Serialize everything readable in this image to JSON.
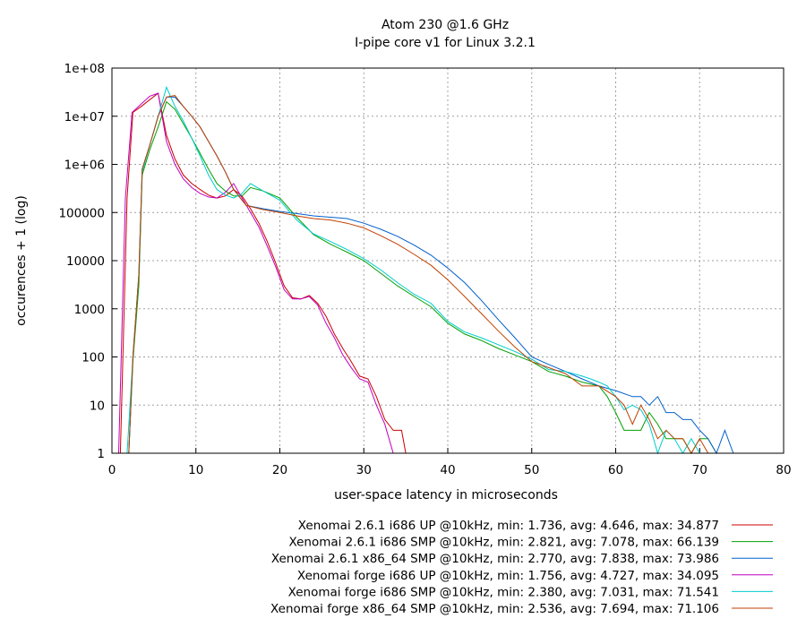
{
  "chart_data": {
    "type": "line",
    "title": "Atom 230 @1.6 GHz",
    "subtitle": "I-pipe core v1 for Linux 3.2.1",
    "xlabel": "user-space latency in microseconds",
    "ylabel": "occurences + 1 (log)",
    "xlim": [
      0,
      80
    ],
    "ylim": [
      1,
      100000000
    ],
    "yscale": "log",
    "grid": true,
    "legend_position": "bottom-right",
    "x_ticks": [
      "0",
      "10",
      "20",
      "30",
      "40",
      "50",
      "60",
      "70",
      "80"
    ],
    "y_ticks": [
      "1",
      "10",
      "100",
      "1000",
      "10000",
      "100000",
      "1e+06",
      "1e+07",
      "1e+08"
    ],
    "series": [
      {
        "name": "Xenomai 2.6.1 i686 UP @10kHz, min: 1.736, avg: 4.646, max: 34.877",
        "color": "#cc0000",
        "points": [
          [
            1.0,
            1
          ],
          [
            1.8,
            200000
          ],
          [
            2.5,
            12000000
          ],
          [
            3.5,
            16000000
          ],
          [
            4.5,
            22000000
          ],
          [
            5.5,
            30000000
          ],
          [
            6.5,
            4000000
          ],
          [
            7.5,
            1300000
          ],
          [
            8.5,
            600000
          ],
          [
            9.5,
            400000
          ],
          [
            10.5,
            300000
          ],
          [
            11.5,
            230000
          ],
          [
            12.5,
            200000
          ],
          [
            13.5,
            220000
          ],
          [
            14.5,
            300000
          ],
          [
            15.5,
            220000
          ],
          [
            16.5,
            120000
          ],
          [
            17.5,
            60000
          ],
          [
            18.5,
            25000
          ],
          [
            19.5,
            9000
          ],
          [
            20.5,
            3000
          ],
          [
            21.5,
            1700
          ],
          [
            22.5,
            1600
          ],
          [
            23.5,
            1900
          ],
          [
            24.5,
            1300
          ],
          [
            25.5,
            700
          ],
          [
            26.5,
            300
          ],
          [
            27.5,
            150
          ],
          [
            28.5,
            80
          ],
          [
            29.5,
            40
          ],
          [
            30.5,
            35
          ],
          [
            31.5,
            15
          ],
          [
            32.5,
            5
          ],
          [
            33.5,
            3
          ],
          [
            34.5,
            3
          ],
          [
            35.0,
            1
          ]
        ]
      },
      {
        "name": "Xenomai 2.6.1 i686 SMP @10kHz, min: 2.821, avg: 7.078, max: 66.139",
        "color": "#00a000",
        "points": [
          [
            2.0,
            1
          ],
          [
            2.5,
            80
          ],
          [
            3.2,
            3000
          ],
          [
            3.6,
            600000
          ],
          [
            4.5,
            2000000
          ],
          [
            5.5,
            6000000
          ],
          [
            6.5,
            20000000
          ],
          [
            7.5,
            14000000
          ],
          [
            8.5,
            7000000
          ],
          [
            9.5,
            3500000
          ],
          [
            10.5,
            1700000
          ],
          [
            11.5,
            800000
          ],
          [
            12.5,
            400000
          ],
          [
            13.5,
            280000
          ],
          [
            14.5,
            220000
          ],
          [
            15.5,
            220000
          ],
          [
            16.5,
            330000
          ],
          [
            18,
            280000
          ],
          [
            20,
            200000
          ],
          [
            22,
            80000
          ],
          [
            24,
            35000
          ],
          [
            26,
            22000
          ],
          [
            28,
            15000
          ],
          [
            30,
            10000
          ],
          [
            32,
            5500
          ],
          [
            34,
            3000
          ],
          [
            36,
            1800
          ],
          [
            38,
            1100
          ],
          [
            40,
            500
          ],
          [
            42,
            300
          ],
          [
            44,
            220
          ],
          [
            46,
            150
          ],
          [
            48,
            110
          ],
          [
            50,
            80
          ],
          [
            52,
            50
          ],
          [
            54,
            40
          ],
          [
            56,
            30
          ],
          [
            58,
            25
          ],
          [
            59,
            15
          ],
          [
            60,
            7
          ],
          [
            61,
            3
          ],
          [
            62,
            3
          ],
          [
            63,
            3
          ],
          [
            64,
            7
          ],
          [
            65,
            4
          ],
          [
            66,
            2
          ],
          [
            67,
            2
          ],
          [
            68,
            2
          ],
          [
            69,
            1
          ],
          [
            70,
            2
          ],
          [
            71,
            2
          ],
          [
            72,
            1
          ]
        ]
      },
      {
        "name": "Xenomai 2.6.1 x86_64 SMP @10kHz, min: 2.770, avg: 7.838, max: 73.986",
        "color": "#0060cc",
        "points": [
          [
            2.0,
            1
          ],
          [
            2.5,
            100
          ],
          [
            3.2,
            5000
          ],
          [
            3.6,
            800000
          ],
          [
            4.5,
            2500000
          ],
          [
            5.5,
            10000000
          ],
          [
            6.5,
            25000000
          ],
          [
            7.5,
            25000000
          ],
          [
            8.5,
            16000000
          ],
          [
            9.5,
            10000000
          ],
          [
            10.5,
            6000000
          ],
          [
            11.5,
            3000000
          ],
          [
            12.5,
            1500000
          ],
          [
            13.5,
            700000
          ],
          [
            14.5,
            300000
          ],
          [
            16,
            140000
          ],
          [
            18,
            120000
          ],
          [
            20,
            105000
          ],
          [
            22,
            95000
          ],
          [
            24,
            85000
          ],
          [
            26,
            80000
          ],
          [
            28,
            75000
          ],
          [
            30,
            60000
          ],
          [
            32,
            45000
          ],
          [
            34,
            32000
          ],
          [
            36,
            21000
          ],
          [
            38,
            13000
          ],
          [
            40,
            7000
          ],
          [
            42,
            3500
          ],
          [
            44,
            1500
          ],
          [
            46,
            600
          ],
          [
            48,
            250
          ],
          [
            50,
            100
          ],
          [
            52,
            70
          ],
          [
            54,
            50
          ],
          [
            56,
            35
          ],
          [
            58,
            25
          ],
          [
            60,
            20
          ],
          [
            62,
            15
          ],
          [
            63,
            15
          ],
          [
            64,
            10
          ],
          [
            65,
            15
          ],
          [
            66,
            7
          ],
          [
            67,
            7
          ],
          [
            68,
            5
          ],
          [
            69,
            5
          ],
          [
            70,
            3
          ],
          [
            71,
            2
          ],
          [
            72,
            1
          ],
          [
            73,
            3
          ],
          [
            74,
            1
          ]
        ]
      },
      {
        "name": "Xenomai forge i686 UP @10kHz, min: 1.756, avg: 4.727, max: 34.095",
        "color": "#c000c0",
        "points": [
          [
            0.8,
            1
          ],
          [
            1.6,
            200000
          ],
          [
            2.4,
            12000000
          ],
          [
            3.5,
            18000000
          ],
          [
            4.5,
            26000000
          ],
          [
            5.5,
            30000000
          ],
          [
            6.5,
            3000000
          ],
          [
            7.5,
            1000000
          ],
          [
            8.5,
            500000
          ],
          [
            9.5,
            330000
          ],
          [
            10.5,
            250000
          ],
          [
            11.5,
            210000
          ],
          [
            12.5,
            200000
          ],
          [
            13.5,
            260000
          ],
          [
            14.5,
            400000
          ],
          [
            15.5,
            200000
          ],
          [
            16.5,
            100000
          ],
          [
            17.5,
            50000
          ],
          [
            18.5,
            20000
          ],
          [
            19.5,
            7500
          ],
          [
            20.5,
            2500
          ],
          [
            21.5,
            1600
          ],
          [
            22.5,
            1600
          ],
          [
            23.5,
            1800
          ],
          [
            24.5,
            1200
          ],
          [
            25.5,
            500
          ],
          [
            26.5,
            250
          ],
          [
            27.5,
            110
          ],
          [
            28.5,
            60
          ],
          [
            29.5,
            35
          ],
          [
            30.5,
            30
          ],
          [
            31.5,
            10
          ],
          [
            32.5,
            4
          ],
          [
            33.0,
            2
          ],
          [
            33.5,
            1
          ]
        ]
      },
      {
        "name": "Xenomai forge i686 SMP @10kHz, min: 2.380, avg: 7.031, max: 71.541",
        "color": "#00cccc",
        "points": [
          [
            1.8,
            1
          ],
          [
            2.5,
            100
          ],
          [
            3.2,
            5000
          ],
          [
            3.6,
            700000
          ],
          [
            4.5,
            2500000
          ],
          [
            5.5,
            10000000
          ],
          [
            6.5,
            40000000
          ],
          [
            7.5,
            16000000
          ],
          [
            8.5,
            8000000
          ],
          [
            9.5,
            3500000
          ],
          [
            10.5,
            1500000
          ],
          [
            11.5,
            600000
          ],
          [
            12.5,
            300000
          ],
          [
            13.5,
            230000
          ],
          [
            14.5,
            200000
          ],
          [
            15.5,
            250000
          ],
          [
            16.5,
            400000
          ],
          [
            18,
            280000
          ],
          [
            20,
            180000
          ],
          [
            22,
            70000
          ],
          [
            24,
            36000
          ],
          [
            26,
            25000
          ],
          [
            28,
            17000
          ],
          [
            30,
            11000
          ],
          [
            32,
            6500
          ],
          [
            34,
            3500
          ],
          [
            36,
            2000
          ],
          [
            38,
            1300
          ],
          [
            40,
            550
          ],
          [
            42,
            330
          ],
          [
            44,
            250
          ],
          [
            46,
            180
          ],
          [
            48,
            130
          ],
          [
            50,
            90
          ],
          [
            52,
            55
          ],
          [
            54,
            50
          ],
          [
            56,
            40
          ],
          [
            57,
            35
          ],
          [
            58,
            30
          ],
          [
            59,
            25
          ],
          [
            60,
            15
          ],
          [
            61,
            8
          ],
          [
            62,
            10
          ],
          [
            63,
            8
          ],
          [
            64,
            4
          ],
          [
            65,
            1
          ],
          [
            66,
            3
          ],
          [
            67,
            2
          ],
          [
            68,
            1
          ],
          [
            69,
            2
          ],
          [
            70,
            1
          ],
          [
            71,
            1
          ]
        ]
      },
      {
        "name": "Xenomai forge x86_64 SMP @10kHz, min: 2.536, avg: 7.694, max: 71.106",
        "color": "#c04000",
        "points": [
          [
            2.0,
            1
          ],
          [
            2.5,
            100
          ],
          [
            3.2,
            5000
          ],
          [
            3.6,
            800000
          ],
          [
            4.5,
            2500000
          ],
          [
            5.5,
            10000000
          ],
          [
            6.5,
            25000000
          ],
          [
            7.5,
            27000000
          ],
          [
            8.5,
            16000000
          ],
          [
            9.5,
            10000000
          ],
          [
            10.5,
            6000000
          ],
          [
            11.5,
            3000000
          ],
          [
            12.5,
            1500000
          ],
          [
            13.5,
            700000
          ],
          [
            14.5,
            300000
          ],
          [
            16,
            140000
          ],
          [
            18,
            115000
          ],
          [
            20,
            100000
          ],
          [
            22,
            85000
          ],
          [
            24,
            75000
          ],
          [
            26,
            70000
          ],
          [
            28,
            60000
          ],
          [
            30,
            48000
          ],
          [
            32,
            33000
          ],
          [
            34,
            22000
          ],
          [
            36,
            13500
          ],
          [
            38,
            8000
          ],
          [
            40,
            4000
          ],
          [
            42,
            1800
          ],
          [
            44,
            800
          ],
          [
            46,
            350
          ],
          [
            48,
            160
          ],
          [
            50,
            80
          ],
          [
            52,
            60
          ],
          [
            54,
            45
          ],
          [
            56,
            25
          ],
          [
            58,
            25
          ],
          [
            60,
            15
          ],
          [
            61,
            10
          ],
          [
            62,
            4
          ],
          [
            63,
            10
          ],
          [
            64,
            5
          ],
          [
            65,
            2
          ],
          [
            66,
            3
          ],
          [
            67,
            2
          ],
          [
            68,
            2
          ],
          [
            69,
            1
          ],
          [
            70,
            2
          ],
          [
            71,
            1
          ]
        ]
      }
    ]
  }
}
